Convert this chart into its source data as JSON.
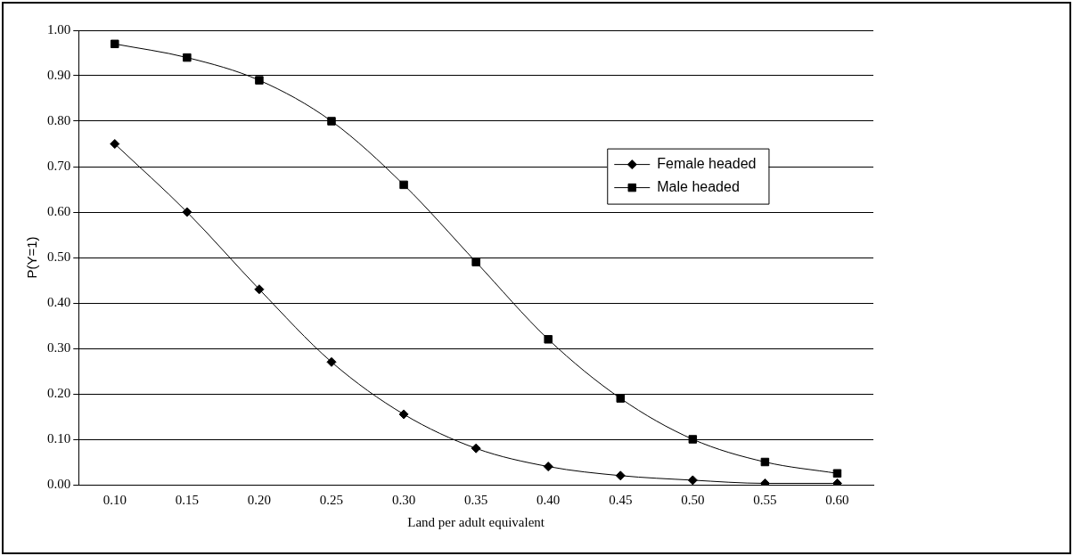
{
  "chart_data": {
    "type": "line",
    "xlabel": "Land per adult equivalent",
    "ylabel": "P(Y=1)",
    "categories": [
      "0.10",
      "0.15",
      "0.20",
      "0.25",
      "0.30",
      "0.35",
      "0.40",
      "0.45",
      "0.50",
      "0.55",
      "0.60"
    ],
    "series": [
      {
        "name": "Female headed",
        "color": "#000000",
        "marker": "diamond",
        "values": [
          0.75,
          0.6,
          0.43,
          0.27,
          0.155,
          0.08,
          0.04,
          0.02,
          0.01,
          0.003,
          0.003
        ]
      },
      {
        "name": "Male headed",
        "color": "#000000",
        "marker": "square",
        "values": [
          0.97,
          0.94,
          0.89,
          0.8,
          0.66,
          0.49,
          0.32,
          0.19,
          0.1,
          0.05,
          0.025
        ]
      }
    ],
    "ylim": [
      0,
      1
    ],
    "yticks": [
      {
        "value": 0,
        "label": "0.00"
      },
      {
        "value": 0.1,
        "label": "0.10"
      },
      {
        "value": 0.2,
        "label": "0.20"
      },
      {
        "value": 0.3,
        "label": "0.30"
      },
      {
        "value": 0.4,
        "label": "0.40"
      },
      {
        "value": 0.5,
        "label": "0.50"
      },
      {
        "value": 0.6,
        "label": "0.60"
      },
      {
        "value": 0.7,
        "label": "0.70"
      },
      {
        "value": 0.8,
        "label": "0.80"
      },
      {
        "value": 0.9,
        "label": "0.90"
      },
      {
        "value": 1,
        "label": "1.00"
      }
    ],
    "grid": "y",
    "legend": "right",
    "line_style": "solid"
  }
}
